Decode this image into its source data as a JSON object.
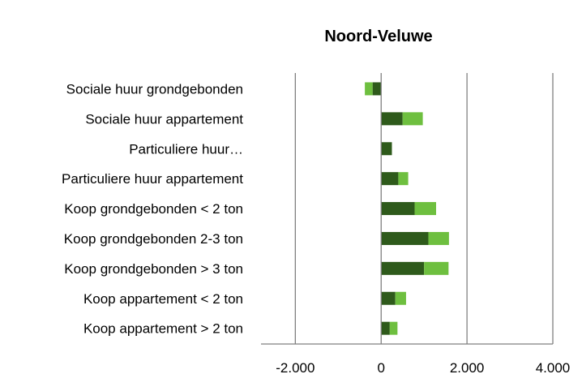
{
  "chart_data": {
    "type": "bar",
    "orientation": "horizontal",
    "stacked": true,
    "title": "Noord-Veluwe",
    "categories": [
      "Sociale huur grondgebonden",
      "Sociale huur appartement",
      "Particuliere huur…",
      "Particuliere huur appartement",
      "Koop grondgebonden < 2 ton",
      "Koop grondgebonden 2-3 ton",
      "Koop grondgebonden > 3 ton",
      "Koop appartement < 2 ton",
      "Koop appartement > 2 ton"
    ],
    "series": [
      {
        "values": [
          -200,
          500,
          250,
          400,
          780,
          1100,
          1000,
          330,
          200
        ],
        "color": "#2e5a1b"
      },
      {
        "values": [
          -180,
          470,
          0,
          230,
          500,
          480,
          570,
          250,
          180
        ],
        "color": "#6ebf3f"
      }
    ],
    "xlim": [
      -2800,
      4000
    ],
    "ticks": [
      -2000,
      0,
      2000,
      4000
    ],
    "tick_labels": [
      "-2.000",
      "0",
      "2.000",
      "4.000"
    ],
    "grid": true,
    "legend": "none"
  }
}
